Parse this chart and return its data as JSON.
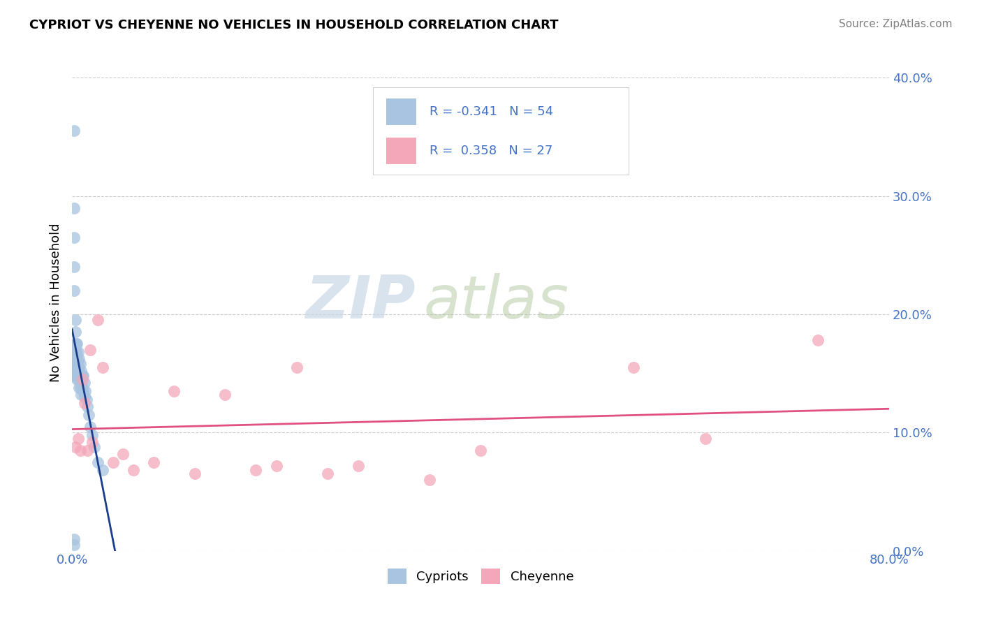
{
  "title": "CYPRIOT VS CHEYENNE NO VEHICLES IN HOUSEHOLD CORRELATION CHART",
  "source": "Source: ZipAtlas.com",
  "ylabel_label": "No Vehicles in Household",
  "xlim": [
    0.0,
    0.8
  ],
  "ylim": [
    0.0,
    0.42
  ],
  "xticks": [
    0.0,
    0.1,
    0.2,
    0.3,
    0.4,
    0.5,
    0.6,
    0.7,
    0.8
  ],
  "xticklabels": [
    "0.0%",
    "",
    "",
    "",
    "",
    "",
    "",
    "",
    "80.0%"
  ],
  "yticks": [
    0.0,
    0.1,
    0.2,
    0.3,
    0.4
  ],
  "yticklabels": [
    "0.0%",
    "10.0%",
    "20.0%",
    "30.0%",
    "40.0%"
  ],
  "cypriot_R": -0.341,
  "cypriot_N": 54,
  "cheyenne_R": 0.358,
  "cheyenne_N": 27,
  "cypriot_color": "#a8c4e0",
  "cheyenne_color": "#f4a7b9",
  "cypriot_line_color": "#1a3e8c",
  "cheyenne_line_color": "#e05080",
  "legend_text_color": "#4472c4",
  "watermark_zip": "ZIP",
  "watermark_atlas": "atlas",
  "background_color": "#ffffff",
  "grid_color": "#cccccc",
  "cypriot_x": [
    0.002,
    0.002,
    0.002,
    0.002,
    0.002,
    0.003,
    0.003,
    0.003,
    0.003,
    0.003,
    0.003,
    0.003,
    0.003,
    0.004,
    0.004,
    0.004,
    0.004,
    0.004,
    0.005,
    0.005,
    0.005,
    0.005,
    0.005,
    0.006,
    0.006,
    0.006,
    0.006,
    0.007,
    0.007,
    0.007,
    0.007,
    0.008,
    0.008,
    0.008,
    0.009,
    0.009,
    0.009,
    0.01,
    0.01,
    0.011,
    0.011,
    0.012,
    0.012,
    0.013,
    0.014,
    0.015,
    0.016,
    0.018,
    0.02,
    0.022,
    0.025,
    0.03,
    0.002,
    0.002
  ],
  "cypriot_y": [
    0.355,
    0.29,
    0.265,
    0.24,
    0.22,
    0.195,
    0.185,
    0.175,
    0.17,
    0.165,
    0.16,
    0.155,
    0.148,
    0.175,
    0.168,
    0.16,
    0.155,
    0.148,
    0.175,
    0.165,
    0.158,
    0.152,
    0.145,
    0.168,
    0.16,
    0.153,
    0.145,
    0.162,
    0.155,
    0.148,
    0.138,
    0.158,
    0.148,
    0.138,
    0.152,
    0.142,
    0.132,
    0.148,
    0.138,
    0.148,
    0.135,
    0.142,
    0.13,
    0.135,
    0.128,
    0.122,
    0.115,
    0.105,
    0.098,
    0.088,
    0.075,
    0.068,
    0.01,
    0.005
  ],
  "cheyenne_x": [
    0.003,
    0.006,
    0.008,
    0.01,
    0.012,
    0.015,
    0.018,
    0.02,
    0.025,
    0.03,
    0.04,
    0.05,
    0.06,
    0.08,
    0.1,
    0.12,
    0.15,
    0.18,
    0.2,
    0.22,
    0.25,
    0.28,
    0.35,
    0.4,
    0.55,
    0.62,
    0.73
  ],
  "cheyenne_y": [
    0.088,
    0.095,
    0.085,
    0.145,
    0.125,
    0.085,
    0.17,
    0.092,
    0.195,
    0.155,
    0.075,
    0.082,
    0.068,
    0.075,
    0.135,
    0.065,
    0.132,
    0.068,
    0.072,
    0.155,
    0.065,
    0.072,
    0.06,
    0.085,
    0.155,
    0.095,
    0.178
  ]
}
